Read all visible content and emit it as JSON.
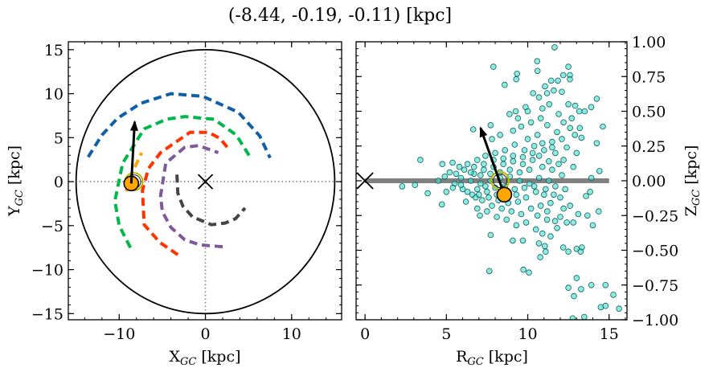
{
  "chart_data": [
    {
      "type": "scatter",
      "title": "(-8.44, -0.19, -0.11) [kpc]",
      "xlabel": {
        "main": "X",
        "sub": "GC",
        "unit": " [kpc]"
      },
      "ylabel": {
        "main": "Y",
        "sub": "GC",
        "unit": " [kpc]"
      },
      "xlim": [
        -15.9,
        15.8
      ],
      "ylim": [
        -15.7,
        15.9
      ],
      "xticks": [
        {
          "v": -10,
          "label": "−10"
        },
        {
          "v": 0,
          "label": "0"
        },
        {
          "v": 10,
          "label": "10"
        }
      ],
      "yticks": [
        {
          "v": 15,
          "label": "15"
        },
        {
          "v": 10,
          "label": "10"
        },
        {
          "v": 5,
          "label": "5"
        },
        {
          "v": 0,
          "label": "0"
        },
        {
          "v": -5,
          "label": "−5"
        },
        {
          "v": -10,
          "label": "−10"
        },
        {
          "v": -15,
          "label": "−15"
        }
      ],
      "galaxy_radius": 15,
      "reference_lines": {
        "x": 0,
        "y": 0,
        "style": "dotted",
        "color": "#808080"
      },
      "galactic_center": {
        "x": 0,
        "y": 0,
        "marker": "x"
      },
      "sun": {
        "x": -8.6,
        "y": -0.2,
        "color": "#ffa500"
      },
      "ring": {
        "x": -8.3,
        "y": 0.0,
        "color": "#b8b800"
      },
      "arrow": {
        "from": [
          -8.6,
          -0.2
        ],
        "to": [
          -8.2,
          6.8
        ]
      },
      "arms": [
        {
          "color": "#1060a8",
          "points": [
            [
              -13.6,
              2.8
            ],
            [
              -12.0,
              5.3
            ],
            [
              -10.2,
              7.2
            ],
            [
              -7.5,
              8.9
            ],
            [
              -4.0,
              10.0
            ],
            [
              -0.3,
              9.7
            ],
            [
              3.8,
              7.9
            ],
            [
              6.3,
              5.2
            ],
            [
              7.5,
              2.7
            ]
          ]
        },
        {
          "color": "#00b84a",
          "points": [
            [
              -8.7,
              -7.5
            ],
            [
              -10.0,
              -5.0
            ],
            [
              -10.5,
              -2.2
            ],
            [
              -9.6,
              2.1
            ],
            [
              -7.1,
              6.0
            ],
            [
              -4.5,
              7.1
            ],
            [
              -2.4,
              7.4
            ],
            [
              1.0,
              7.1
            ],
            [
              3.6,
              5.3
            ],
            [
              5.3,
              2.6
            ]
          ]
        },
        {
          "color": "#ff3300",
          "points": [
            [
              -3.2,
              -8.3
            ],
            [
              -5.3,
              -6.9
            ],
            [
              -7.1,
              -4.9
            ],
            [
              -7.3,
              -1.0
            ],
            [
              -6.6,
              1.5
            ],
            [
              -5.2,
              3.3
            ],
            [
              -1.8,
              5.6
            ],
            [
              0.4,
              5.6
            ],
            [
              1.7,
              4.9
            ],
            [
              2.7,
              3.7
            ]
          ]
        },
        {
          "color": "#7e5a9b",
          "points": [
            [
              2.0,
              -7.4
            ],
            [
              -0.6,
              -7.2
            ],
            [
              -2.4,
              -6.6
            ],
            [
              -4.0,
              -5.2
            ],
            [
              -5.0,
              -3.4
            ],
            [
              -5.2,
              -1.6
            ],
            [
              -4.6,
              2.1
            ],
            [
              -2.4,
              3.9
            ],
            [
              -0.8,
              4.1
            ],
            [
              1.5,
              3.3
            ]
          ]
        },
        {
          "color": "#444444",
          "points": [
            [
              -3.3,
              0.8
            ],
            [
              -3.2,
              -1.3
            ],
            [
              -2.6,
              -2.8
            ],
            [
              -1.5,
              -4.0
            ],
            [
              0.7,
              -4.9
            ],
            [
              2.3,
              -4.7
            ],
            [
              3.5,
              -4.2
            ],
            [
              4.6,
              -3.0
            ]
          ]
        },
        {
          "color": "#ffa500",
          "points": [
            [
              -9.2,
              -1.1
            ],
            [
              -8.5,
              1.0
            ],
            [
              -7.4,
              3.3
            ]
          ]
        }
      ]
    },
    {
      "type": "scatter",
      "xlabel": {
        "main": "R",
        "sub": "GC",
        "unit": " [kpc]"
      },
      "ylabel": {
        "main": "Z",
        "sub": "GC",
        "unit": " [kpc]"
      },
      "xlim": [
        -0.55,
        16.1
      ],
      "ylim": [
        -1.0,
        1.0
      ],
      "xticks": [
        {
          "v": 0,
          "label": "0"
        },
        {
          "v": 5,
          "label": "5"
        },
        {
          "v": 10,
          "label": "10"
        },
        {
          "v": 15,
          "label": "15"
        }
      ],
      "yticks": [
        {
          "v": 1.0,
          "label": "1.00"
        },
        {
          "v": 0.75,
          "label": "0.75"
        },
        {
          "v": 0.5,
          "label": "0.50"
        },
        {
          "v": 0.25,
          "label": "0.25"
        },
        {
          "v": 0,
          "label": "0.00"
        },
        {
          "v": -0.25,
          "label": "−0.25"
        },
        {
          "v": -0.5,
          "label": "−0.50"
        },
        {
          "v": -0.75,
          "label": "−0.75"
        },
        {
          "v": -1.0,
          "label": "−1.00"
        }
      ],
      "disk_line": {
        "z": 0,
        "R": [
          0,
          15
        ],
        "color": "#808080"
      },
      "galactic_center": {
        "R": 0,
        "z": 0,
        "marker": "x"
      },
      "sun": {
        "R": 8.56,
        "z": -0.1,
        "color": "#ffa500"
      },
      "ring": {
        "R": 8.3,
        "z": 0.0,
        "color": "#b8b800"
      },
      "arrow": {
        "from": [
          8.56,
          -0.1
        ],
        "to": [
          7.1,
          0.38
        ]
      },
      "point_color": "#40e0d0",
      "points": [
        [
          11.65,
          0.96
        ],
        [
          7.89,
          0.82
        ],
        [
          10.58,
          0.86
        ],
        [
          10.6,
          0.79
        ],
        [
          12.5,
          0.82
        ],
        [
          9.34,
          0.77
        ],
        [
          9.29,
          0.73
        ],
        [
          8.58,
          0.69
        ],
        [
          11.44,
          0.72
        ],
        [
          11.85,
          0.72
        ],
        [
          12.18,
          0.76
        ],
        [
          12.59,
          0.76
        ],
        [
          12.59,
          0.73
        ],
        [
          11.06,
          0.68
        ],
        [
          11.19,
          0.63
        ],
        [
          11.6,
          0.65
        ],
        [
          12.1,
          0.64
        ],
        [
          10.33,
          0.63
        ],
        [
          10.69,
          0.6
        ],
        [
          14.24,
          0.59
        ],
        [
          11.32,
          0.55
        ],
        [
          12.5,
          0.55
        ],
        [
          12.92,
          0.54
        ],
        [
          13.17,
          0.5
        ],
        [
          13.5,
          0.5
        ],
        [
          13.9,
          0.53
        ],
        [
          9.87,
          0.53
        ],
        [
          9.26,
          0.5
        ],
        [
          8.88,
          0.48
        ],
        [
          14.62,
          0.39
        ],
        [
          14.24,
          0.27
        ],
        [
          6.65,
          0.37
        ],
        [
          7.72,
          0.4
        ],
        [
          3.4,
          0.15
        ],
        [
          2.28,
          -0.04
        ],
        [
          3.07,
          -0.03
        ],
        [
          3.85,
          -0.09
        ],
        [
          4.75,
          0.12
        ],
        [
          5.38,
          0.13
        ],
        [
          4.72,
          -0.17
        ],
        [
          14.41,
          0.07
        ],
        [
          13.91,
          0.02
        ],
        [
          13.83,
          -0.08
        ],
        [
          13.58,
          -0.11
        ],
        [
          14.36,
          -0.22
        ],
        [
          14.0,
          -0.32
        ],
        [
          13.67,
          -0.25
        ],
        [
          11.68,
          -0.29
        ],
        [
          11.19,
          -0.28
        ],
        [
          10.69,
          -0.45
        ],
        [
          11.1,
          -0.51
        ],
        [
          10.77,
          -0.55
        ],
        [
          11.05,
          -0.47
        ],
        [
          12.18,
          -0.48
        ],
        [
          12.5,
          -0.51
        ],
        [
          13.0,
          -0.49
        ],
        [
          13.33,
          -0.48
        ],
        [
          13.25,
          -0.51
        ],
        [
          7.72,
          -0.39
        ],
        [
          7.06,
          -0.25
        ],
        [
          7.64,
          -0.65
        ],
        [
          9.73,
          -0.64
        ],
        [
          10.07,
          -0.66
        ],
        [
          9.08,
          -0.43
        ],
        [
          9.7,
          -0.43
        ],
        [
          13.0,
          -0.7
        ],
        [
          12.5,
          -0.77
        ],
        [
          12.84,
          -0.83
        ],
        [
          13.28,
          -0.78
        ],
        [
          13.91,
          -0.75
        ],
        [
          14.78,
          -0.75
        ],
        [
          15.26,
          -0.82
        ],
        [
          14.49,
          -0.91
        ],
        [
          14.78,
          -0.9
        ],
        [
          15.61,
          -0.92
        ],
        [
          12.76,
          -0.99
        ],
        [
          13.47,
          -0.98
        ],
        [
          12.2,
          0.42
        ],
        [
          12.6,
          0.38
        ],
        [
          12.9,
          0.33
        ],
        [
          13.3,
          0.31
        ],
        [
          11.8,
          0.35
        ],
        [
          11.2,
          0.4
        ],
        [
          10.8,
          0.45
        ],
        [
          10.2,
          0.42
        ],
        [
          9.6,
          0.39
        ],
        [
          9.1,
          0.36
        ],
        [
          8.3,
          0.33
        ],
        [
          7.8,
          0.3
        ],
        [
          10.0,
          0.3
        ],
        [
          10.6,
          0.33
        ],
        [
          11.5,
          0.28
        ],
        [
          12.4,
          0.24
        ],
        [
          13.0,
          0.2
        ],
        [
          12.8,
          0.1
        ],
        [
          12.2,
          0.15
        ],
        [
          11.7,
          0.2
        ],
        [
          11.0,
          0.22
        ],
        [
          10.4,
          0.25
        ],
        [
          9.8,
          0.22
        ],
        [
          9.2,
          0.26
        ],
        [
          8.6,
          0.22
        ],
        [
          8.0,
          0.2
        ],
        [
          7.4,
          0.18
        ],
        [
          6.9,
          0.15
        ],
        [
          6.3,
          0.12
        ],
        [
          5.8,
          0.1
        ],
        [
          5.2,
          0.06
        ],
        [
          4.9,
          0.03
        ],
        [
          5.5,
          -0.02
        ],
        [
          6.0,
          -0.06
        ],
        [
          6.6,
          -0.1
        ],
        [
          7.2,
          -0.14
        ],
        [
          7.8,
          -0.18
        ],
        [
          8.4,
          -0.2
        ],
        [
          9.0,
          -0.22
        ],
        [
          9.6,
          -0.24
        ],
        [
          10.2,
          -0.2
        ],
        [
          10.8,
          -0.18
        ],
        [
          11.4,
          -0.16
        ],
        [
          12.0,
          -0.12
        ],
        [
          12.6,
          -0.18
        ],
        [
          13.1,
          -0.24
        ],
        [
          12.4,
          -0.3
        ],
        [
          11.8,
          -0.34
        ],
        [
          10.5,
          -0.35
        ],
        [
          9.9,
          -0.3
        ],
        [
          9.3,
          -0.32
        ],
        [
          8.7,
          -0.28
        ],
        [
          8.1,
          -0.26
        ],
        [
          7.5,
          -0.22
        ],
        [
          6.9,
          -0.2
        ],
        [
          6.2,
          -0.15
        ],
        [
          5.6,
          0.05
        ],
        [
          6.1,
          0.08
        ],
        [
          6.7,
          0.05
        ],
        [
          7.3,
          0.08
        ],
        [
          7.9,
          0.1
        ],
        [
          8.5,
          0.12
        ],
        [
          9.1,
          0.14
        ],
        [
          9.7,
          0.12
        ],
        [
          10.3,
          0.15
        ],
        [
          10.9,
          0.1
        ],
        [
          11.5,
          0.08
        ],
        [
          12.1,
          0.04
        ],
        [
          11.3,
          0.0
        ],
        [
          10.7,
          0.02
        ],
        [
          10.1,
          -0.02
        ],
        [
          9.5,
          0.0
        ],
        [
          8.9,
          0.03
        ],
        [
          8.3,
          0.02
        ],
        [
          7.7,
          0.0
        ],
        [
          7.1,
          -0.02
        ],
        [
          6.5,
          0.0
        ],
        [
          5.9,
          -0.03
        ],
        [
          6.3,
          -0.08
        ],
        [
          6.9,
          -0.06
        ],
        [
          7.5,
          -0.08
        ],
        [
          8.1,
          -0.1
        ],
        [
          8.7,
          -0.12
        ],
        [
          9.3,
          -0.1
        ],
        [
          9.9,
          -0.12
        ],
        [
          10.5,
          -0.08
        ],
        [
          11.1,
          -0.06
        ],
        [
          11.7,
          -0.04
        ],
        [
          12.3,
          -0.06
        ],
        [
          11.9,
          0.12
        ],
        [
          11.3,
          0.14
        ],
        [
          10.7,
          0.18
        ],
        [
          10.1,
          0.08
        ],
        [
          9.5,
          0.06
        ],
        [
          8.9,
          0.08
        ],
        [
          8.3,
          0.06
        ],
        [
          7.7,
          0.05
        ],
        [
          7.1,
          0.04
        ],
        [
          6.5,
          0.06
        ],
        [
          5.9,
          0.02
        ],
        [
          6.7,
          0.1
        ],
        [
          7.3,
          0.12
        ],
        [
          7.9,
          0.15
        ],
        [
          8.5,
          0.16
        ],
        [
          9.1,
          0.18
        ],
        [
          9.7,
          0.17
        ],
        [
          10.3,
          0.2
        ],
        [
          10.9,
          0.27
        ],
        [
          11.5,
          0.24
        ],
        [
          12.1,
          0.3
        ],
        [
          6.8,
          -0.12
        ],
        [
          7.4,
          -0.04
        ],
        [
          8.0,
          -0.05
        ],
        [
          8.6,
          -0.04
        ],
        [
          9.2,
          -0.06
        ],
        [
          9.8,
          -0.05
        ],
        [
          10.4,
          -0.04
        ],
        [
          11.0,
          -0.1
        ],
        [
          11.6,
          -0.1
        ],
        [
          12.2,
          -0.2
        ],
        [
          10.6,
          -0.25
        ],
        [
          11.2,
          -0.22
        ],
        [
          9.4,
          -0.15
        ],
        [
          8.8,
          -0.16
        ],
        [
          8.2,
          -0.14
        ],
        [
          7.6,
          -0.12
        ],
        [
          7.0,
          -0.1
        ],
        [
          5.4,
          -0.05
        ],
        [
          5.0,
          -0.08
        ],
        [
          4.5,
          0.0
        ],
        [
          11.4,
          -0.4
        ],
        [
          10.9,
          -0.38
        ],
        [
          12.0,
          -0.26
        ],
        [
          12.8,
          -0.3
        ],
        [
          13.2,
          0.38
        ],
        [
          12.7,
          0.45
        ],
        [
          11.9,
          0.48
        ],
        [
          10.9,
          0.52
        ],
        [
          10.0,
          0.5
        ],
        [
          9.4,
          0.45
        ]
      ]
    }
  ]
}
